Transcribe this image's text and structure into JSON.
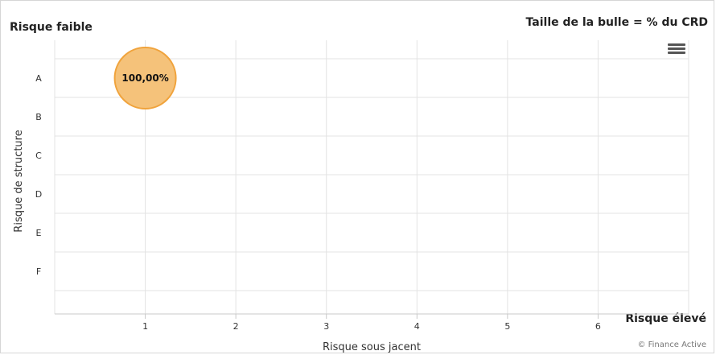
{
  "header": {
    "top_left_label": "Risque faible",
    "top_right_label": "Taille de la bulle = % du CRD",
    "bottom_right_label": "Risque élevé",
    "credit": "© Finance Active",
    "menu_icon": "hamburger-menu-icon"
  },
  "chart_data": {
    "type": "scatter",
    "xlabel": "Risque sous jacent",
    "ylabel": "Risque de structure",
    "x_ticks": [
      "1",
      "2",
      "3",
      "4",
      "5",
      "6"
    ],
    "y_categories": [
      "A",
      "B",
      "C",
      "D",
      "E",
      "F"
    ],
    "xlim": [
      0,
      7
    ],
    "grid": true,
    "points": [
      {
        "x": 1,
        "y": "A",
        "size_percent": 100,
        "label": "100,00%"
      }
    ],
    "colors": {
      "bubble_fill": "#f5c27a",
      "bubble_stroke": "#f0a33c",
      "grid": "#e3e3e3"
    }
  }
}
